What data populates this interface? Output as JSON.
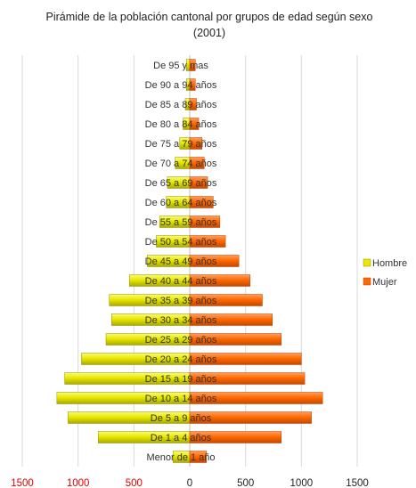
{
  "chart_data": {
    "type": "bar",
    "orientation": "horizontal",
    "title": "Pirámide de la población cantonal por grupos de edad según sexo (2001)",
    "categories": [
      "Menor de 1 año",
      "De 1 a 4 años",
      "De 5 a 9 años",
      "De 10 a 14 años",
      "De 15 a 19 años",
      "De 20 a 24 años",
      "De 25 a 29 años",
      "De 30 a 34 años",
      "De 35 a 39 años",
      "De 40 a 44 años",
      "De 45 a 49 años",
      "De 50 a 54 años",
      "De 55 a 59 años",
      "De 60 a 64 años",
      "De 65 a 69 años",
      "De 70 a 74 años",
      "De 75 a 79 años",
      "De 80 a 84 años",
      "De 85 a 89 años",
      "De 90 a 94 años",
      "De 95 y mas"
    ],
    "series": [
      {
        "name": "Hombre",
        "color": "#e8e800",
        "values": [
          150,
          820,
          1090,
          1190,
          1120,
          970,
          750,
          700,
          720,
          540,
          380,
          300,
          270,
          210,
          200,
          130,
          90,
          60,
          40,
          30,
          30
        ]
      },
      {
        "name": "Mujer",
        "color": "#ff6a00",
        "values": [
          150,
          820,
          1090,
          1190,
          1030,
          1000,
          820,
          740,
          650,
          540,
          440,
          320,
          270,
          210,
          160,
          130,
          110,
          80,
          60,
          50,
          50
        ]
      }
    ],
    "xlim": [
      -1500,
      1500
    ],
    "xticks": [
      {
        "value": -1500,
        "label": "1500"
      },
      {
        "value": -1000,
        "label": "1000"
      },
      {
        "value": -500,
        "label": "500"
      },
      {
        "value": 0,
        "label": "0"
      },
      {
        "value": 500,
        "label": "500"
      },
      {
        "value": 1000,
        "label": "1000"
      },
      {
        "value": 1500,
        "label": "1500"
      }
    ],
    "negative_tick_color": "#e00000",
    "positive_tick_color": "#222222",
    "grid": true,
    "legend": "right"
  }
}
